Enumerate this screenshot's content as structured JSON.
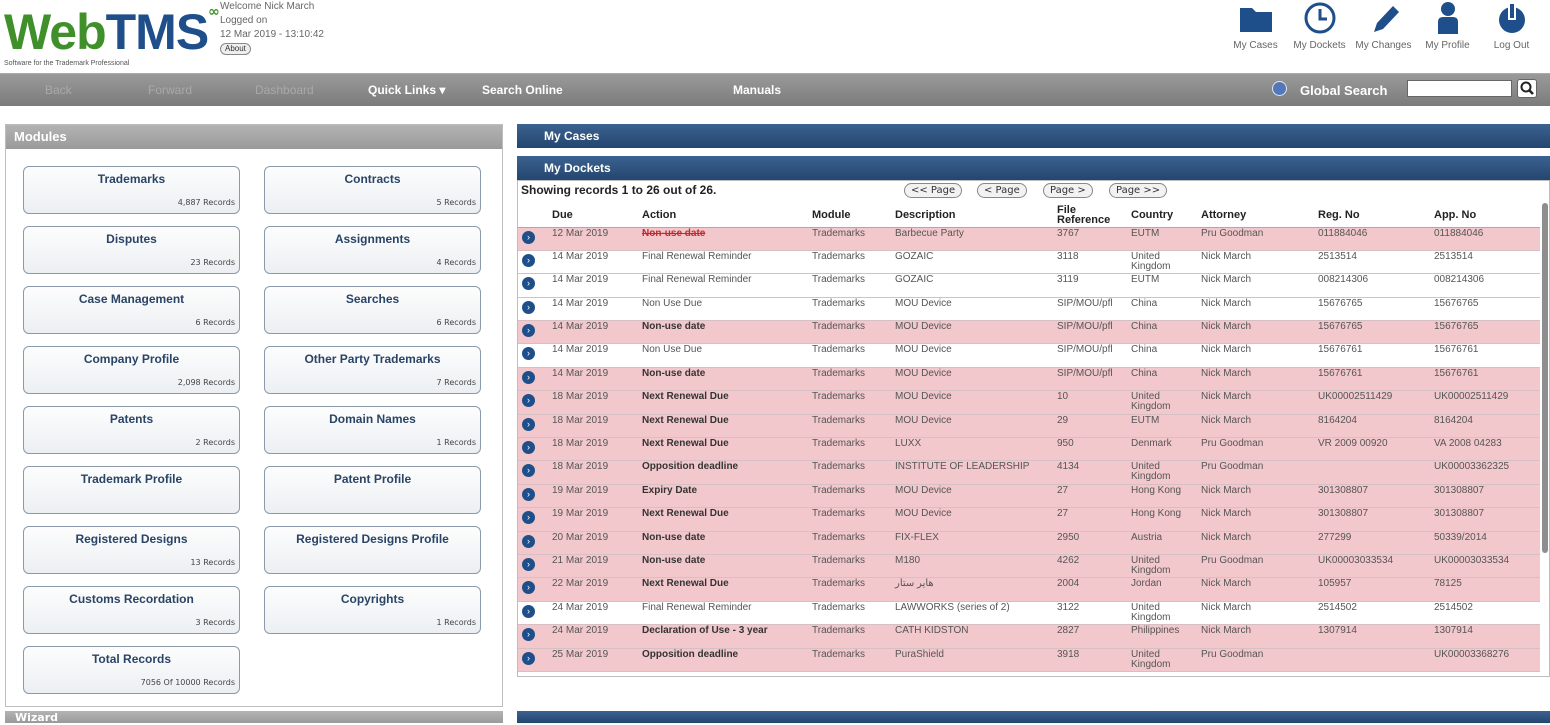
{
  "header": {
    "logo_main": "Web",
    "logo_accent": "TMS",
    "logo_tagline": "Software for the Trademark Professional",
    "welcome": "Welcome Nick March",
    "logged_on": "Logged on",
    "datetime": "12 Mar 2019 - 13:10:42",
    "about": "About",
    "icons": [
      {
        "label": "My Cases",
        "icon": "folder-icon"
      },
      {
        "label": "My Dockets",
        "icon": "clock-icon"
      },
      {
        "label": "My Changes",
        "icon": "pencil-icon"
      },
      {
        "label": "My Profile",
        "icon": "user-icon"
      },
      {
        "label": "Log Out",
        "icon": "power-icon"
      }
    ]
  },
  "nav": {
    "ghost_items": [
      "Back",
      "Forward",
      "Dashboard"
    ],
    "quick_links": "Quick Links ▾",
    "search_online": "Search Online",
    "manuals": "Manuals",
    "global_search": "Global Search"
  },
  "modules": {
    "title": "Modules",
    "items": [
      {
        "name": "Trademarks",
        "records": "4,887 Records"
      },
      {
        "name": "Contracts",
        "records": "5 Records"
      },
      {
        "name": "Disputes",
        "records": "23 Records"
      },
      {
        "name": "Assignments",
        "records": "4 Records"
      },
      {
        "name": "Case Management",
        "records": "6 Records"
      },
      {
        "name": "Searches",
        "records": "6 Records"
      },
      {
        "name": "Company Profile",
        "records": "2,098 Records"
      },
      {
        "name": "Other Party Trademarks",
        "records": "7 Records"
      },
      {
        "name": "Patents",
        "records": "2 Records"
      },
      {
        "name": "Domain Names",
        "records": "1 Records"
      },
      {
        "name": "Trademark Profile",
        "records": ""
      },
      {
        "name": "Patent Profile",
        "records": ""
      },
      {
        "name": "Registered Designs",
        "records": "13 Records"
      },
      {
        "name": "Registered Designs Profile",
        "records": ""
      },
      {
        "name": "Customs Recordation",
        "records": "3 Records"
      },
      {
        "name": "Copyrights",
        "records": "1 Records"
      },
      {
        "name": "Total Records",
        "records": "7056 Of 10000 Records"
      }
    ],
    "wizard": "Wizard"
  },
  "my_cases": {
    "title": "My Cases"
  },
  "my_dockets": {
    "title": "My Dockets",
    "showing": "Showing records 1 to 26 out of 26.",
    "pager": [
      "<< Page",
      "< Page",
      "Page >",
      "Page >>"
    ],
    "columns": [
      "Due",
      "Action",
      "Module",
      "Description",
      "File Reference",
      "Country",
      "Attorney",
      "Reg. No",
      "App. No"
    ],
    "rows": [
      {
        "style": "red",
        "action_style": "strike",
        "due": "12 Mar 2019",
        "action": "Non-use date",
        "module": "Trademarks",
        "desc": "Barbecue Party",
        "ref": "3767",
        "country": "EUTM",
        "attorney": "Pru Goodman",
        "reg": "011884046",
        "app": "011884046"
      },
      {
        "style": "white",
        "action_style": "",
        "due": "14 Mar 2019",
        "action": "Final Renewal Reminder",
        "module": "Trademarks",
        "desc": "GOZAIC",
        "ref": "3118",
        "country": "United Kingdom",
        "attorney": "Nick March",
        "reg": "2513514",
        "app": "2513514"
      },
      {
        "style": "white",
        "action_style": "",
        "due": "14 Mar 2019",
        "action": "Final Renewal Reminder",
        "module": "Trademarks",
        "desc": "GOZAIC",
        "ref": "3119",
        "country": "EUTM",
        "attorney": "Nick March",
        "reg": "008214306",
        "app": "008214306"
      },
      {
        "style": "white",
        "action_style": "",
        "due": "14 Mar 2019",
        "action": "Non Use Due",
        "module": "Trademarks",
        "desc": "MOU Device",
        "ref": "SIP/MOU/pfl",
        "country": "China",
        "attorney": "Nick March",
        "reg": "15676765",
        "app": "15676765"
      },
      {
        "style": "red",
        "action_style": "bold",
        "due": "14 Mar 2019",
        "action": "Non-use date",
        "module": "Trademarks",
        "desc": "MOU Device",
        "ref": "SIP/MOU/pfl",
        "country": "China",
        "attorney": "Nick March",
        "reg": "15676765",
        "app": "15676765"
      },
      {
        "style": "white",
        "action_style": "",
        "due": "14 Mar 2019",
        "action": "Non Use Due",
        "module": "Trademarks",
        "desc": "MOU Device",
        "ref": "SIP/MOU/pfl",
        "country": "China",
        "attorney": "Nick March",
        "reg": "15676761",
        "app": "15676761"
      },
      {
        "style": "red",
        "action_style": "bold",
        "due": "14 Mar 2019",
        "action": "Non-use date",
        "module": "Trademarks",
        "desc": "MOU Device",
        "ref": "SIP/MOU/pfl",
        "country": "China",
        "attorney": "Nick March",
        "reg": "15676761",
        "app": "15676761"
      },
      {
        "style": "red",
        "action_style": "bold",
        "due": "18 Mar 2019",
        "action": "Next Renewal Due",
        "module": "Trademarks",
        "desc": "MOU Device",
        "ref": "10",
        "country": "United Kingdom",
        "attorney": "Nick March",
        "reg": "UK00002511429",
        "app": "UK00002511429"
      },
      {
        "style": "red",
        "action_style": "bold",
        "due": "18 Mar 2019",
        "action": "Next Renewal Due",
        "module": "Trademarks",
        "desc": "MOU Device",
        "ref": "29",
        "country": "EUTM",
        "attorney": "Nick March",
        "reg": "8164204",
        "app": "8164204"
      },
      {
        "style": "red",
        "action_style": "bold",
        "due": "18 Mar 2019",
        "action": "Next Renewal Due",
        "module": "Trademarks",
        "desc": "LUXX",
        "ref": "950",
        "country": "Denmark",
        "attorney": "Pru Goodman",
        "reg": "VR 2009 00920",
        "app": "VA 2008 04283"
      },
      {
        "style": "red",
        "action_style": "bold",
        "due": "18 Mar 2019",
        "action": "Opposition deadline",
        "module": "Trademarks",
        "desc": "INSTITUTE OF LEADERSHIP",
        "ref": "4134",
        "country": "United Kingdom",
        "attorney": "Pru Goodman",
        "reg": "",
        "app": "UK00003362325"
      },
      {
        "style": "red",
        "action_style": "bold",
        "due": "19 Mar 2019",
        "action": "Expiry Date",
        "module": "Trademarks",
        "desc": "MOU Device",
        "ref": "27",
        "country": "Hong Kong",
        "attorney": "Nick March",
        "reg": "301308807",
        "app": "301308807"
      },
      {
        "style": "red",
        "action_style": "bold",
        "due": "19 Mar 2019",
        "action": "Next Renewal Due",
        "module": "Trademarks",
        "desc": "MOU Device",
        "ref": "27",
        "country": "Hong Kong",
        "attorney": "Nick March",
        "reg": "301308807",
        "app": "301308807"
      },
      {
        "style": "red",
        "action_style": "bold",
        "due": "20 Mar 2019",
        "action": "Non-use date",
        "module": "Trademarks",
        "desc": "FIX-FLEX",
        "ref": "2950",
        "country": "Austria",
        "attorney": "Nick March",
        "reg": "277299",
        "app": "50339/2014"
      },
      {
        "style": "red",
        "action_style": "bold",
        "due": "21 Mar 2019",
        "action": "Non-use date",
        "module": "Trademarks",
        "desc": "M180",
        "ref": "4262",
        "country": "United Kingdom",
        "attorney": "Pru Goodman",
        "reg": "UK00003033534",
        "app": "UK00003033534"
      },
      {
        "style": "red",
        "action_style": "bold",
        "due": "22 Mar 2019",
        "action": "Next Renewal Due",
        "module": "Trademarks",
        "desc": "هاير ستار",
        "ref": "2004",
        "country": "Jordan",
        "attorney": "Nick March",
        "reg": "105957",
        "app": "78125"
      },
      {
        "style": "white",
        "action_style": "",
        "due": "24 Mar 2019",
        "action": "Final Renewal Reminder",
        "module": "Trademarks",
        "desc": "LAWWORKS (series of 2)",
        "ref": "3122",
        "country": "United Kingdom",
        "attorney": "Nick March",
        "reg": "2514502",
        "app": "2514502"
      },
      {
        "style": "red",
        "action_style": "bold",
        "due": "24 Mar 2019",
        "action": "Declaration of Use - 3 year",
        "module": "Trademarks",
        "desc": "CATH KIDSTON",
        "ref": "2827",
        "country": "Philippines",
        "attorney": "Nick March",
        "reg": "1307914",
        "app": "1307914"
      },
      {
        "style": "red",
        "action_style": "bold",
        "due": "25 Mar 2019",
        "action": "Opposition deadline",
        "module": "Trademarks",
        "desc": "PuraShield",
        "ref": "3918",
        "country": "United Kingdom",
        "attorney": "Pru Goodman",
        "reg": "",
        "app": "UK00003368276"
      }
    ]
  }
}
